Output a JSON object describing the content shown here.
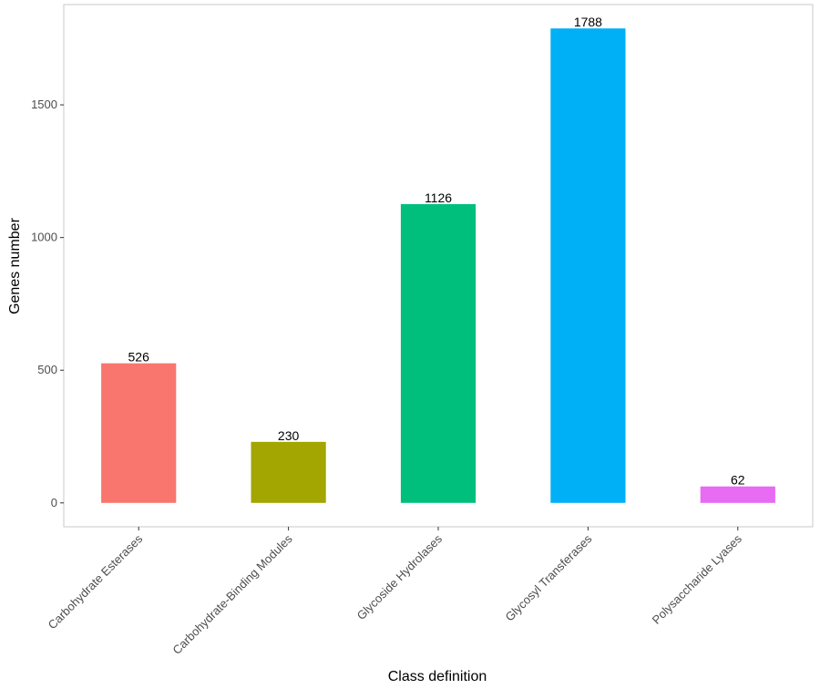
{
  "chart_data": {
    "type": "bar",
    "title": "",
    "xlabel": "Class definition",
    "ylabel": "Genes number",
    "categories": [
      "Carbohydrate Esterases",
      "Carbohydrate-Binding Modules",
      "Glycoside Hydrolases",
      "Glycosyl Transferases",
      "Polysaccharide Lyases"
    ],
    "values": [
      526,
      230,
      1126,
      1788,
      62
    ],
    "colors": [
      "#f8766d",
      "#a3a500",
      "#00bf7d",
      "#00b0f6",
      "#e76bf3"
    ],
    "ylim": [
      -90,
      1878
    ],
    "yticks": [
      0,
      500,
      1000,
      1500
    ],
    "data_labels": true,
    "grid": false,
    "legend": "none"
  }
}
